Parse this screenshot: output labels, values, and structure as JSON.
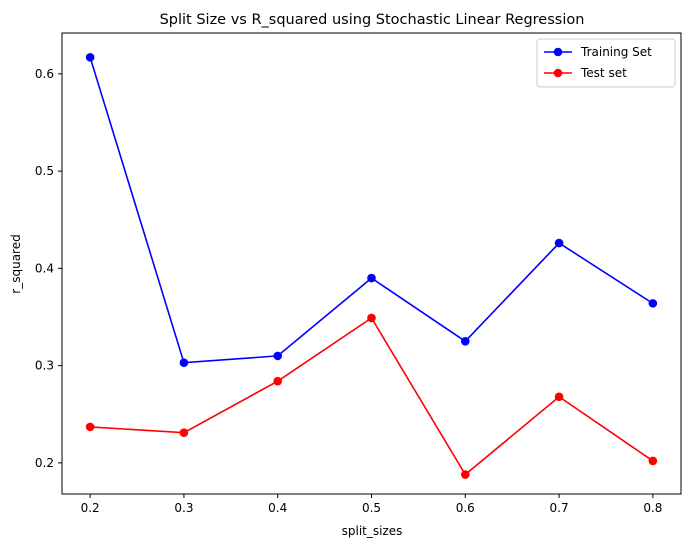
{
  "chart_data": {
    "type": "line",
    "title": "Split Size vs R_squared using Stochastic Linear Regression",
    "xlabel": "split_sizes",
    "ylabel": "r_squared",
    "x": [
      0.2,
      0.3,
      0.4,
      0.5,
      0.6,
      0.7,
      0.8
    ],
    "x_ticks": [
      "0.2",
      "0.3",
      "0.4",
      "0.5",
      "0.6",
      "0.7",
      "0.8"
    ],
    "y_ticks": [
      "0.2",
      "0.3",
      "0.4",
      "0.5",
      "0.6"
    ],
    "xlim": [
      0.17,
      0.83
    ],
    "ylim": [
      0.168,
      0.642
    ],
    "grid": false,
    "legend_position": "top-right",
    "series": [
      {
        "name": "Training Set",
        "color": "#0000ff",
        "marker": "circle",
        "values": [
          0.617,
          0.303,
          0.31,
          0.39,
          0.325,
          0.426,
          0.364
        ]
      },
      {
        "name": "Test set",
        "color": "#ff0000",
        "marker": "circle",
        "values": [
          0.237,
          0.231,
          0.284,
          0.349,
          0.188,
          0.268,
          0.202
        ]
      }
    ]
  }
}
